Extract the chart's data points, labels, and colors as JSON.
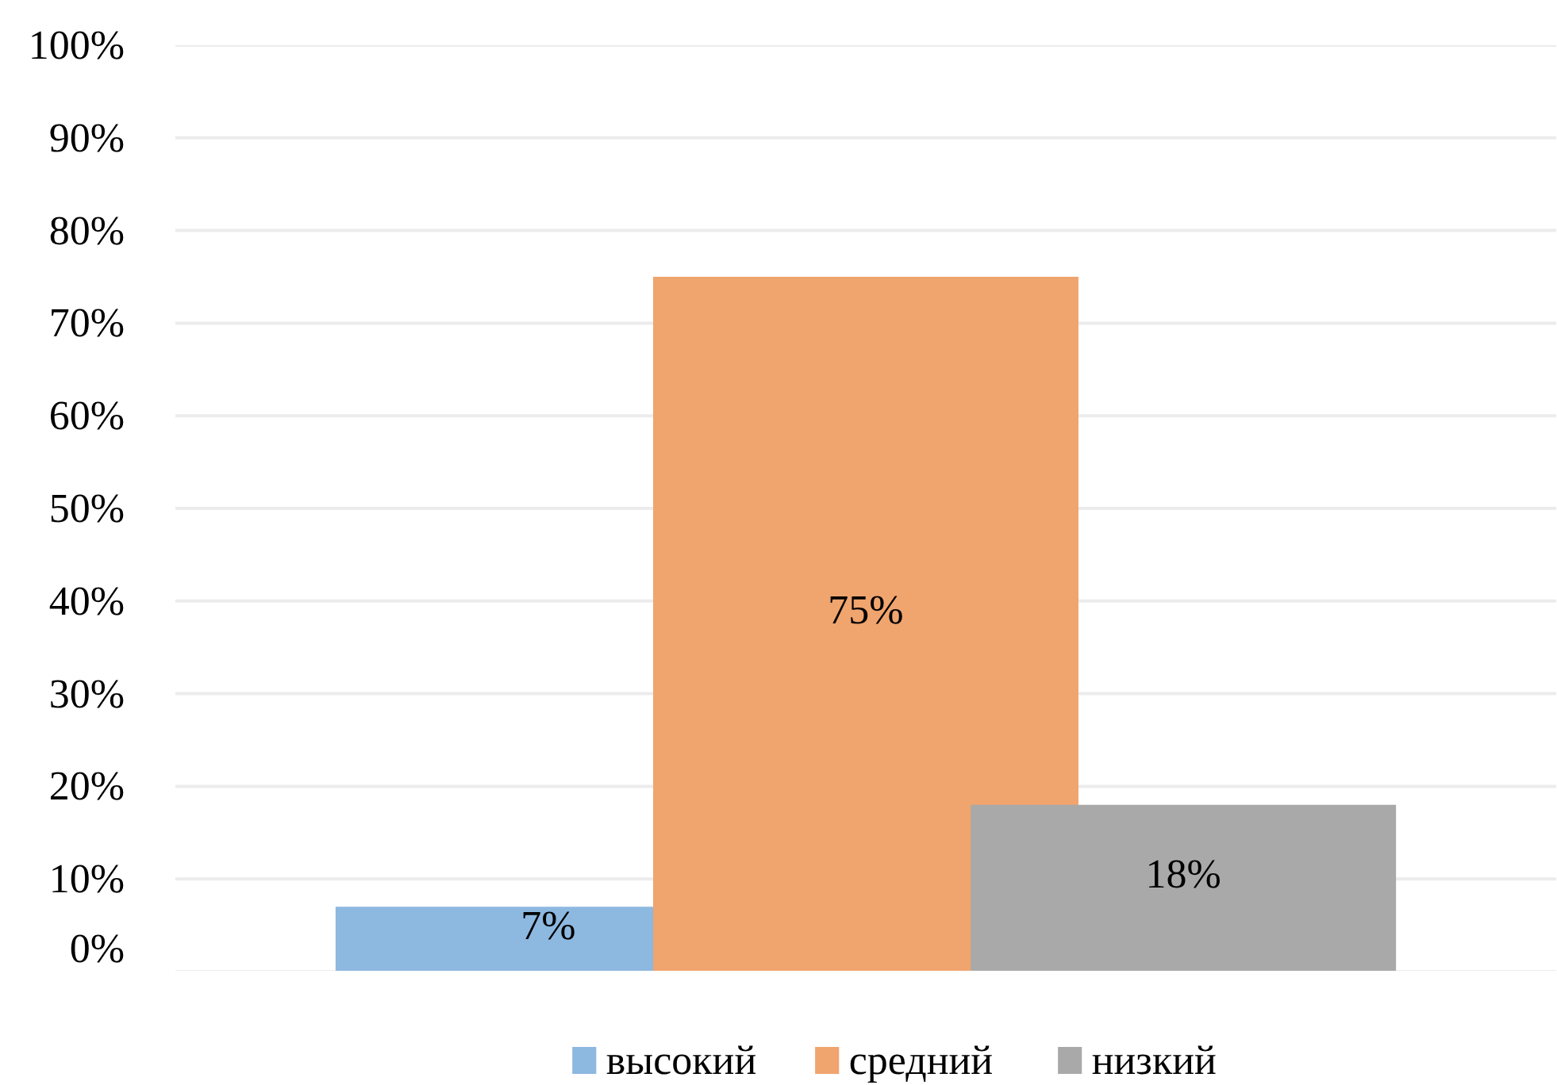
{
  "chart_data": {
    "type": "bar",
    "categories": [
      null
    ],
    "series": [
      {
        "name": "высокий",
        "color": "#8db8e0",
        "values": [
          7
        ],
        "value_labels": [
          "7%"
        ]
      },
      {
        "name": "средний",
        "color": "#f0a46e",
        "values": [
          75
        ],
        "value_labels": [
          "75%"
        ]
      },
      {
        "name": "низкий",
        "color": "#a9a9a9",
        "values": [
          18
        ],
        "value_labels": [
          "18%"
        ]
      }
    ],
    "ylim": [
      0,
      100
    ],
    "yticks": [
      {
        "value": 0,
        "label": "0%"
      },
      {
        "value": 10,
        "label": "10%"
      },
      {
        "value": 20,
        "label": "20%"
      },
      {
        "value": 30,
        "label": "30%"
      },
      {
        "value": 40,
        "label": "40%"
      },
      {
        "value": 50,
        "label": "50%"
      },
      {
        "value": 60,
        "label": "60%"
      },
      {
        "value": 70,
        "label": "70%"
      },
      {
        "value": 80,
        "label": "80%"
      },
      {
        "value": 90,
        "label": "90%"
      },
      {
        "value": 100,
        "label": "100%"
      }
    ],
    "grid": "y",
    "legend": "bottom",
    "tick_labels": "y"
  }
}
